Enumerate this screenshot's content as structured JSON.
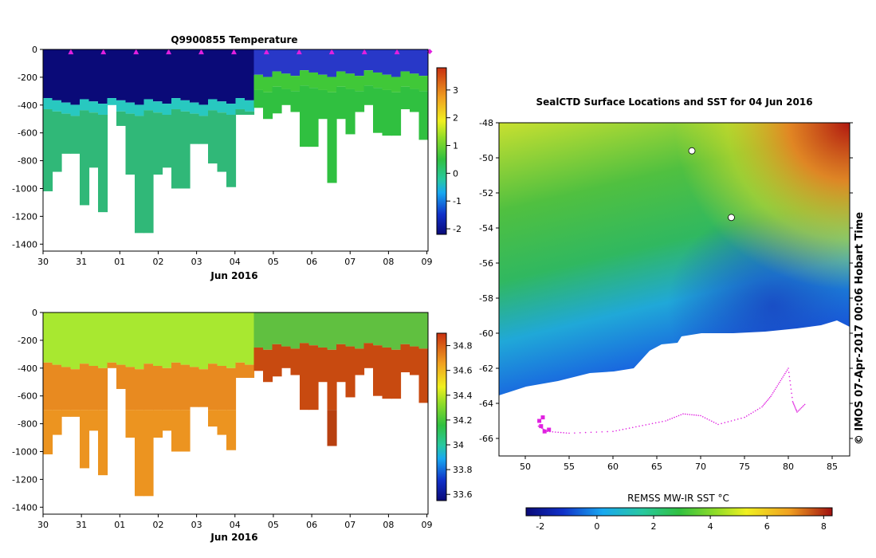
{
  "chart_data": [
    {
      "type": "heatmap",
      "title": "Q9900855  Temperature",
      "xlabel": "Jun 2016",
      "ylabel": "",
      "x_ticks": [
        "30",
        "31",
        "01",
        "02",
        "03",
        "04",
        "05",
        "06",
        "07",
        "08",
        "09"
      ],
      "y_ticks": [
        "0",
        "-200",
        "-400",
        "-600",
        "-800",
        "-1000",
        "-1200",
        "-1400"
      ],
      "ylim": [
        -1450,
        0
      ],
      "colorbar": {
        "ticks": [
          "3",
          "2",
          "1",
          "0",
          "-1",
          "-2"
        ],
        "range": [
          -2.2,
          3.8
        ]
      },
      "profile_depths": [
        -1020,
        -880,
        -750,
        -750,
        -1120,
        -850,
        -1170,
        -400,
        -550,
        -900,
        -1320,
        -1320,
        -900,
        -850,
        -1000,
        -1000,
        -680,
        -680,
        -820,
        -880,
        -990,
        -470,
        -470,
        -420,
        -500,
        -460,
        -400,
        -450,
        -700,
        -700,
        -500,
        -960,
        -500,
        -610,
        -450,
        -400,
        -600,
        -620,
        -620,
        -430,
        -450,
        -650
      ],
      "surface_markers": [
        "▲",
        "▲",
        "▲",
        "▲",
        "▲",
        "▲",
        "▲",
        "▲",
        "▲",
        "▲",
        "▲",
        "◆"
      ]
    },
    {
      "type": "heatmap",
      "title": "",
      "xlabel": "Jun 2016",
      "ylabel": "",
      "x_ticks": [
        "30",
        "31",
        "01",
        "02",
        "03",
        "04",
        "05",
        "06",
        "07",
        "08",
        "09"
      ],
      "y_ticks": [
        "0",
        "-200",
        "-400",
        "-600",
        "-800",
        "-1000",
        "-1200",
        "-1400"
      ],
      "ylim": [
        -1450,
        0
      ],
      "colorbar": {
        "ticks": [
          "34.8",
          "34.6",
          "34.4",
          "34.2",
          "34",
          "33.8",
          "33.6"
        ],
        "range": [
          33.55,
          34.9
        ]
      }
    },
    {
      "type": "heatmap",
      "title": "SealCTD Surface Locations and SST for 04 Jun 2016",
      "xlabel": "",
      "ylabel": "",
      "x_ticks": [
        "50",
        "55",
        "60",
        "65",
        "70",
        "75",
        "80",
        "85"
      ],
      "y_ticks": [
        "-48",
        "-50",
        "-52",
        "-54",
        "-56",
        "-58",
        "-60",
        "-62",
        "-64",
        "-66"
      ],
      "xlim": [
        47,
        87
      ],
      "ylim": [
        -67,
        -48
      ],
      "colorbar": {
        "label": "REMSS MW-IR SST °C",
        "ticks": [
          "-2",
          "0",
          "2",
          "4",
          "6",
          "8"
        ],
        "range": [
          -2.5,
          8.3
        ]
      }
    }
  ],
  "credit": "© IMOS 07-Apr-2017 00:06 Hobart Time"
}
